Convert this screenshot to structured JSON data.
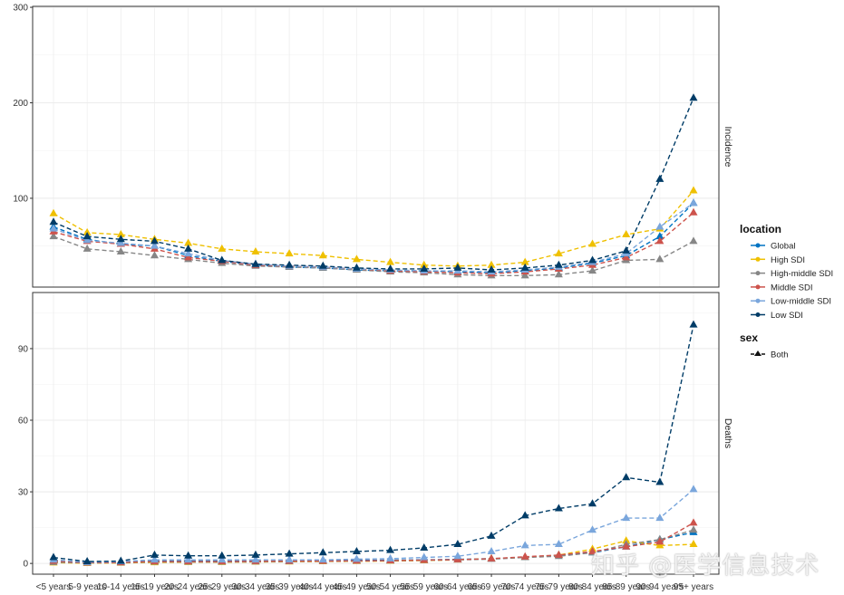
{
  "chart_data": {
    "type": "line",
    "categories": [
      "<5 years",
      "5-9 years",
      "10-14 years",
      "15-19 years",
      "20-24 years",
      "25-29 years",
      "30-34 years",
      "35-39 years",
      "40-44 years",
      "45-49 years",
      "50-54 years",
      "55-59 years",
      "60-64 years",
      "65-69 years",
      "70-74 years",
      "75-79 years",
      "80-84 years",
      "85-89 years",
      "90-94 years",
      "95+ years"
    ],
    "grid": true,
    "legend_placement": "right",
    "legend": {
      "location_title": "location",
      "sex_title": "sex",
      "sex_entries": [
        "Both"
      ]
    },
    "locations": [
      {
        "name": "Global",
        "color": "#0073C2"
      },
      {
        "name": "High SDI",
        "color": "#EFC000"
      },
      {
        "name": "High-middle SDI",
        "color": "#868686"
      },
      {
        "name": "Middle SDI",
        "color": "#CD534C"
      },
      {
        "name": "Low-middle SDI",
        "color": "#7AA6DC"
      },
      {
        "name": "Low SDI",
        "color": "#003C67"
      }
    ],
    "panels": [
      {
        "label": "Incidence",
        "ylim": [
          7,
          301
        ],
        "yticks": [
          100,
          200,
          300
        ],
        "series": [
          {
            "name": "Global",
            "values": [
              70,
              57,
              52,
              50,
              40,
              34,
              30,
              28,
              27,
              25,
              24,
              24,
              23,
              22,
              24,
              27,
              32,
              40,
              60,
              95
            ]
          },
          {
            "name": "High SDI",
            "values": [
              84,
              64,
              62,
              57,
              53,
              47,
              44,
              42,
              40,
              36,
              33,
              30,
              29,
              30,
              33,
              42,
              52,
              62,
              68,
              108
            ]
          },
          {
            "name": "High-middle SDI",
            "values": [
              60,
              47,
              44,
              40,
              36,
              32,
              29,
              28,
              27,
              25,
              23,
              22,
              20,
              19,
              19,
              20,
              24,
              35,
              36,
              55
            ]
          },
          {
            "name": "Middle SDI",
            "values": [
              65,
              55,
              52,
              47,
              38,
              34,
              30,
              29,
              28,
              26,
              24,
              23,
              22,
              21,
              23,
              26,
              30,
              38,
              55,
              85
            ]
          },
          {
            "name": "Low-middle SDI",
            "values": [
              68,
              56,
              53,
              50,
              42,
              35,
              31,
              29,
              28,
              26,
              25,
              24,
              24,
              23,
              25,
              28,
              33,
              42,
              70,
              95
            ]
          },
          {
            "name": "Low SDI",
            "values": [
              75,
              60,
              57,
              55,
              47,
              35,
              31,
              30,
              29,
              27,
              26,
              26,
              27,
              25,
              27,
              30,
              35,
              45,
              120,
              205
            ]
          }
        ]
      },
      {
        "label": "Deaths",
        "ylim": [
          -4.5,
          113.5
        ],
        "yticks": [
          0,
          30,
          60,
          90
        ],
        "series": [
          {
            "name": "Global",
            "values": [
              1,
              0.4,
              0.5,
              1,
              1,
              1,
              1,
              1,
              1.2,
              1.3,
              1.4,
              1.5,
              1.7,
              2,
              2.5,
              3.5,
              4.5,
              7,
              10,
              13
            ]
          },
          {
            "name": "High SDI",
            "values": [
              0.3,
              0.1,
              0.2,
              0.4,
              0.5,
              0.5,
              0.6,
              0.7,
              0.8,
              0.9,
              1,
              1.2,
              1.5,
              2,
              2.5,
              3.5,
              6,
              9.5,
              7.5,
              8
            ]
          },
          {
            "name": "High-middle SDI",
            "values": [
              0.5,
              0.2,
              0.3,
              0.6,
              0.6,
              0.6,
              0.7,
              0.8,
              0.9,
              1,
              1.1,
              1.3,
              1.5,
              1.8,
              2.5,
              3,
              4.5,
              8,
              10,
              14
            ]
          },
          {
            "name": "Middle SDI",
            "values": [
              1,
              0.3,
              0.4,
              0.8,
              0.8,
              0.8,
              0.9,
              1,
              1,
              1.1,
              1.2,
              1.4,
              1.6,
              2,
              2.8,
              3.5,
              5,
              7,
              9,
              17
            ]
          },
          {
            "name": "Low-middle SDI",
            "values": [
              1.5,
              0.5,
              0.8,
              1.5,
              1.5,
              1.5,
              1.5,
              1.5,
              1.5,
              1.8,
              2,
              2.5,
              3,
              5,
              7.5,
              8,
              14,
              19,
              19,
              31
            ]
          },
          {
            "name": "Low SDI",
            "values": [
              2.5,
              0.8,
              1,
              3.5,
              3.2,
              3.2,
              3.5,
              4,
              4.5,
              5,
              5.5,
              6.5,
              8,
              11.5,
              20,
              23,
              25,
              36,
              34,
              100
            ]
          }
        ]
      }
    ]
  },
  "watermark": "知乎 @医学信息技术"
}
